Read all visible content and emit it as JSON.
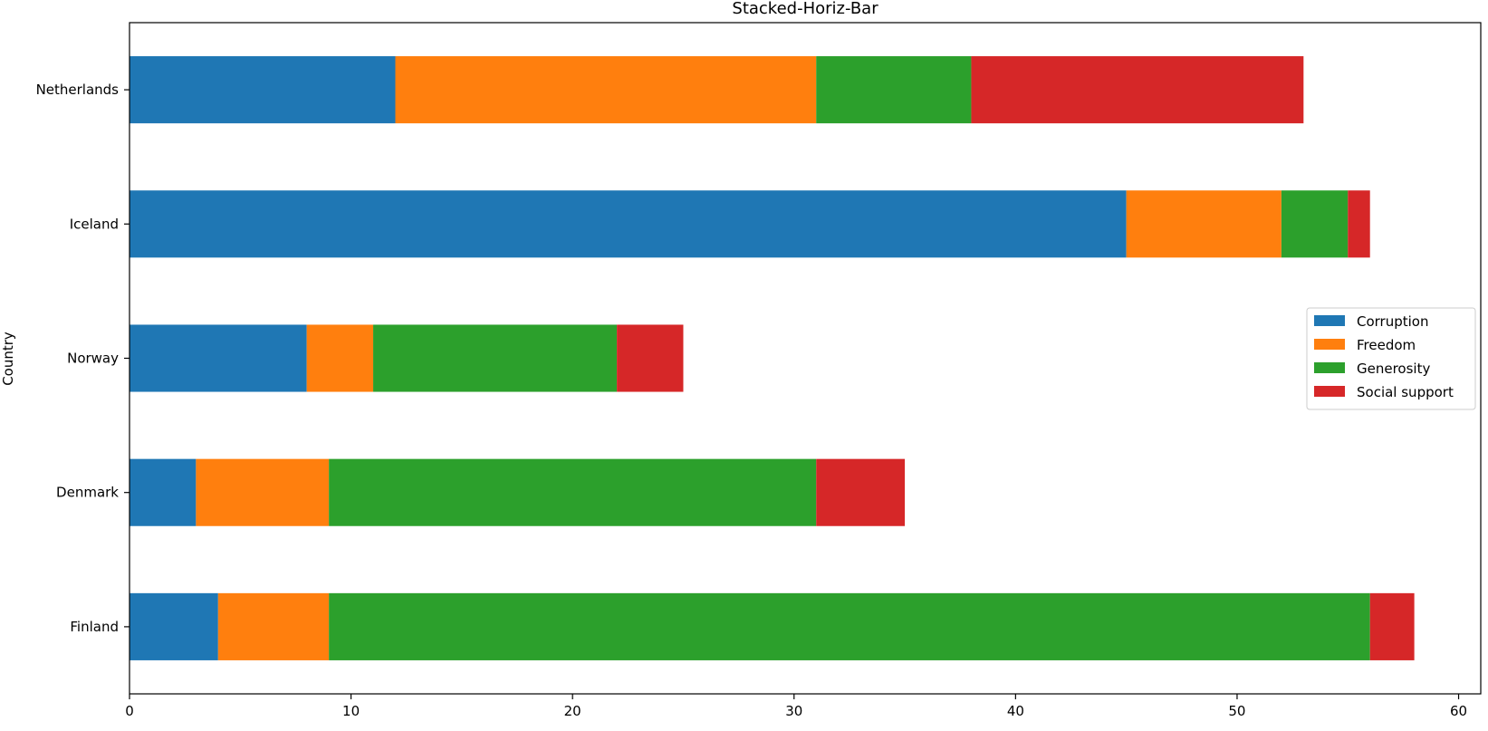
{
  "chart_data": {
    "type": "bar",
    "orientation": "horizontal",
    "stacked": true,
    "title": "Stacked-Horiz-Bar",
    "xlabel": "",
    "ylabel": "Country",
    "categories": [
      "Finland",
      "Denmark",
      "Norway",
      "Iceland",
      "Netherlands"
    ],
    "xlim": [
      0,
      61
    ],
    "xticks": [
      0,
      10,
      20,
      30,
      40,
      50,
      60
    ],
    "grid": false,
    "legend_position": "center-right",
    "series": [
      {
        "name": "Corruption",
        "color": "#1f77b4",
        "values": [
          4,
          3,
          8,
          45,
          12
        ]
      },
      {
        "name": "Freedom",
        "color": "#ff7f0e",
        "values": [
          5,
          6,
          3,
          7,
          19
        ]
      },
      {
        "name": "Generosity",
        "color": "#2ca02c",
        "values": [
          47,
          22,
          11,
          3,
          7
        ]
      },
      {
        "name": "Social support",
        "color": "#d62728",
        "values": [
          2,
          4,
          3,
          1,
          15
        ]
      }
    ]
  }
}
